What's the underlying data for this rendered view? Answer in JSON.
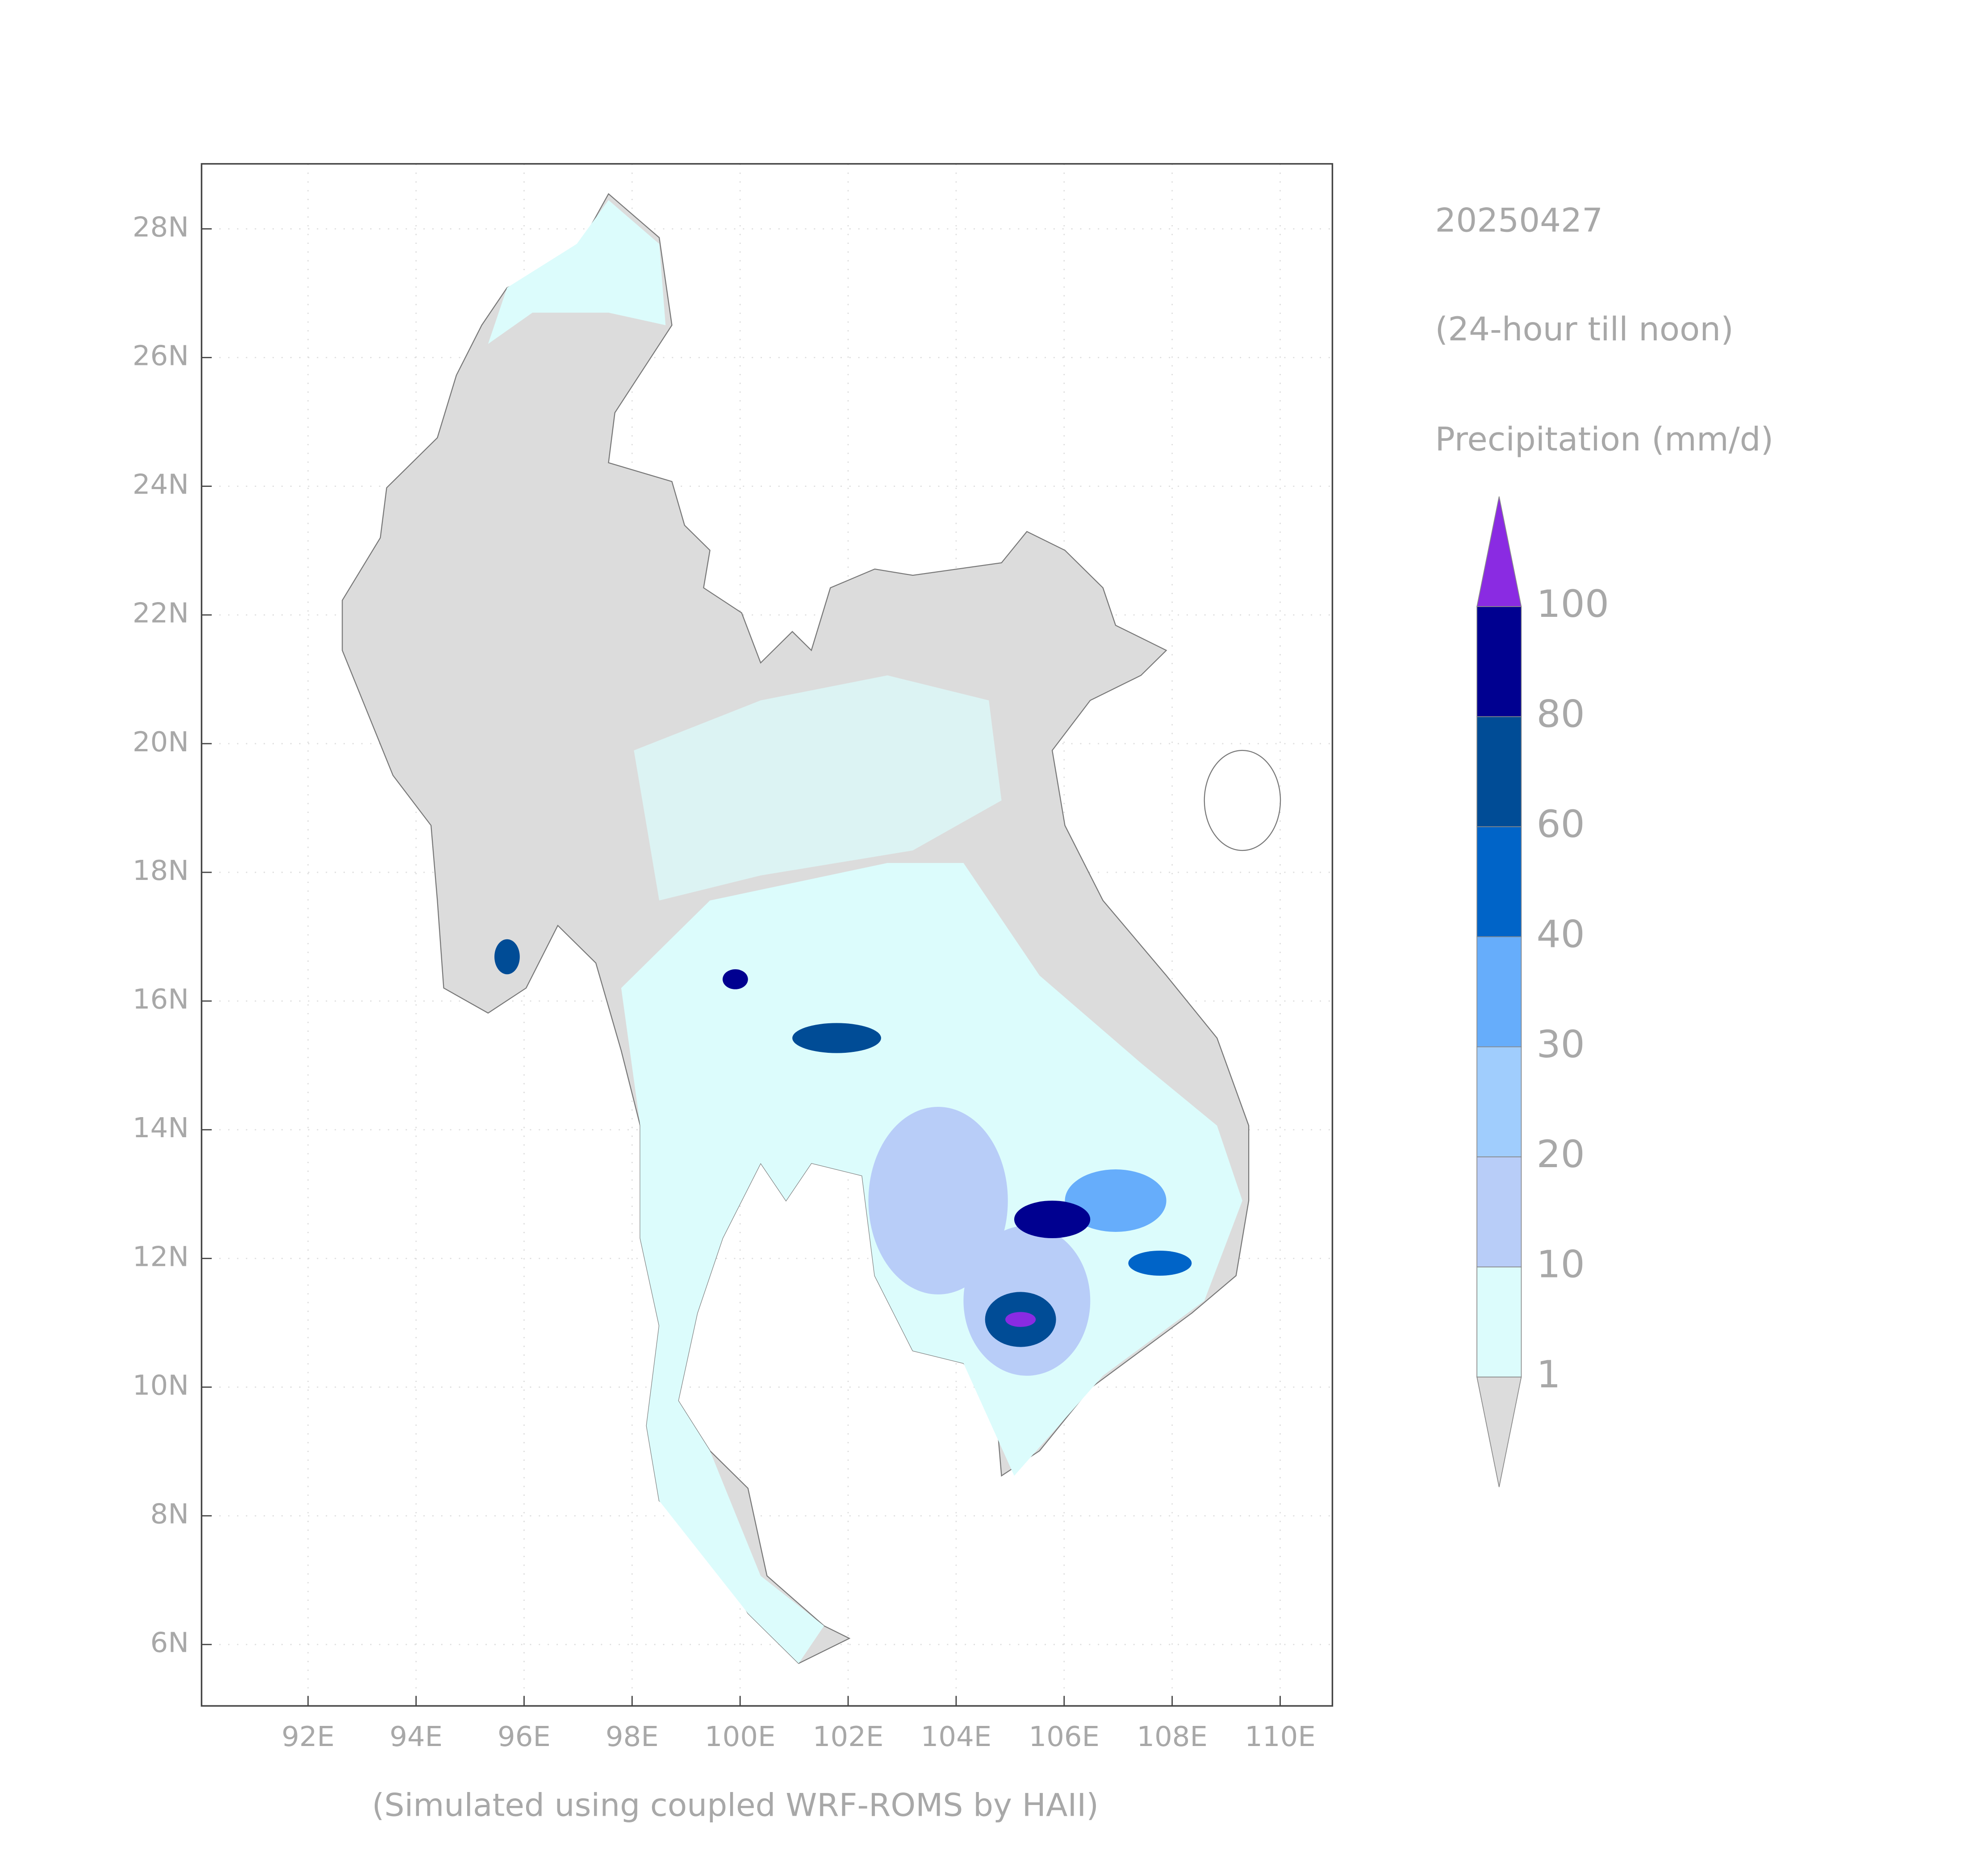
{
  "map": {
    "date": "20250427",
    "period": "(24-hour till noon)",
    "variable": "Precipitation (mm/d)",
    "footnote": "(Simulated using coupled WRF-ROMS by HAII)",
    "lat_labels": [
      "28N",
      "26N",
      "24N",
      "22N",
      "20N",
      "18N",
      "16N",
      "14N",
      "12N",
      "10N",
      "8N",
      "6N"
    ],
    "lon_labels": [
      "92E",
      "94E",
      "96E",
      "98E",
      "100E",
      "102E",
      "104E",
      "106E",
      "108E",
      "110E"
    ],
    "legend": {
      "levels": [
        1,
        10,
        20,
        30,
        40,
        60,
        80,
        100
      ],
      "colors": [
        "#dcdcdc",
        "#dcfcfc",
        "#b8cdf8",
        "#a0cdfd",
        "#66adfb",
        "#0064c8",
        "#004c96",
        "#000090",
        "#8a2be2"
      ]
    }
  }
}
